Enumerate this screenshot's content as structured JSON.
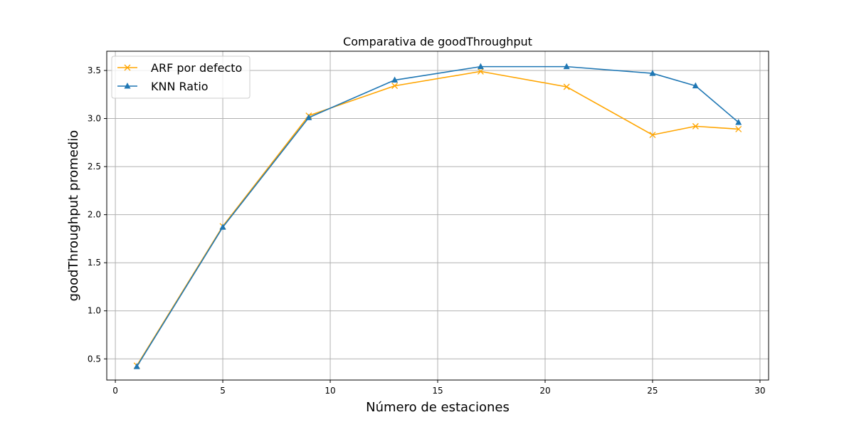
{
  "chart_data": {
    "type": "line",
    "title": "Comparativa de goodThroughput",
    "xlabel": "Número de estaciones",
    "ylabel": "goodThroughput promedio",
    "xlim": [
      -0.4,
      30.4
    ],
    "ylim": [
      0.28,
      3.7
    ],
    "xticks": [
      0,
      5,
      10,
      15,
      20,
      25,
      30
    ],
    "yticks": [
      0.5,
      1.0,
      1.5,
      2.0,
      2.5,
      3.0,
      3.5
    ],
    "grid": true,
    "legend_position": "upper-left",
    "x": [
      1,
      5,
      9,
      13,
      17,
      21,
      25,
      27,
      29
    ],
    "series": [
      {
        "name": "ARF por defecto",
        "color": "#ffa500",
        "marker": "x",
        "values": [
          0.43,
          1.88,
          3.03,
          3.34,
          3.49,
          3.33,
          2.83,
          2.92,
          2.89
        ]
      },
      {
        "name": "KNN Ratio",
        "color": "#1f77b4",
        "marker": "triangle",
        "values": [
          0.42,
          1.87,
          3.01,
          3.4,
          3.54,
          3.54,
          3.47,
          3.34,
          2.96
        ]
      }
    ]
  }
}
